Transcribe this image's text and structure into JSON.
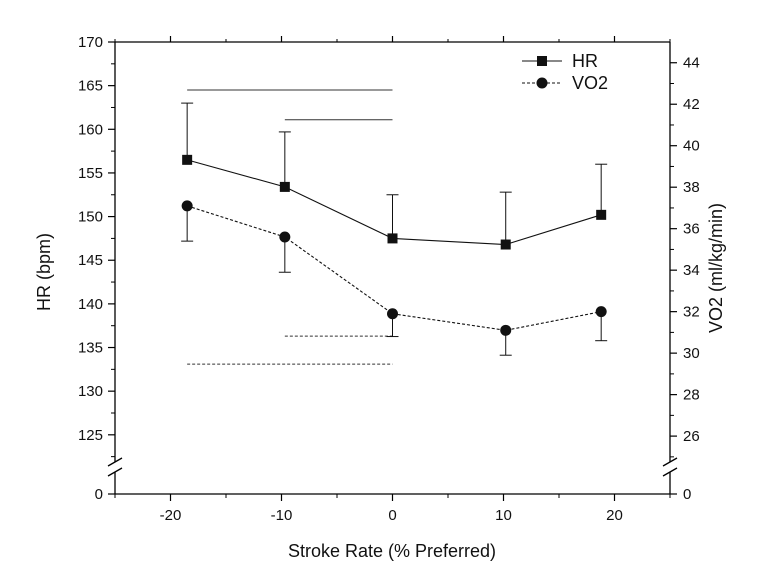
{
  "chart_data": {
    "type": "line",
    "xlabel": "Stroke Rate (% Preferred)",
    "ylabel": "HR (bpm)",
    "y2label": "VO2 (ml/kg/min)",
    "xlim": [
      -25,
      25
    ],
    "ylim": [
      120,
      170
    ],
    "y2lim": [
      24,
      45
    ],
    "axis_break": {
      "left": [
        0,
        122
      ],
      "right": [
        0,
        24.8
      ]
    },
    "x_ticks": [
      -20,
      -10,
      0,
      10,
      20
    ],
    "y_ticks": [
      125,
      130,
      135,
      140,
      145,
      150,
      155,
      160,
      165,
      170
    ],
    "y_zero_label": "0",
    "y2_ticks": [
      26,
      28,
      30,
      32,
      34,
      36,
      38,
      40,
      42,
      44
    ],
    "y2_zero_label": "0",
    "grid": false,
    "legend_position": "top-right",
    "series": [
      {
        "name": "HR",
        "axis": "left",
        "marker": "square",
        "line": "solid",
        "x": [
          -18.5,
          -9.7,
          0,
          10.2,
          18.8
        ],
        "values": [
          156.5,
          153.4,
          147.5,
          146.8,
          150.2
        ],
        "error_upper": [
          163.0,
          159.7,
          152.5,
          152.8,
          156.0
        ]
      },
      {
        "name": "VO2",
        "axis": "right",
        "marker": "circle",
        "line": "dashed",
        "x": [
          -18.5,
          -9.7,
          0,
          10.2,
          18.8
        ],
        "values": [
          37.1,
          35.6,
          31.9,
          31.1,
          32.0
        ],
        "error_lower": [
          35.4,
          33.9,
          30.8,
          29.9,
          30.6
        ]
      }
    ],
    "significance_bars": [
      {
        "style": "solid",
        "axis": "left",
        "x_range": [
          -18.5,
          0
        ],
        "y": 164.5
      },
      {
        "style": "solid",
        "axis": "left",
        "x_range": [
          -9.7,
          0
        ],
        "y": 161.1
      },
      {
        "style": "dashed",
        "axis": "left",
        "x_range": [
          -9.7,
          0
        ],
        "y": 136.3
      },
      {
        "style": "dashed",
        "axis": "left",
        "x_range": [
          -18.5,
          0
        ],
        "y": 133.1
      }
    ]
  },
  "colors": {
    "line": "#111111",
    "axis": "#000000",
    "background": "#ffffff"
  }
}
